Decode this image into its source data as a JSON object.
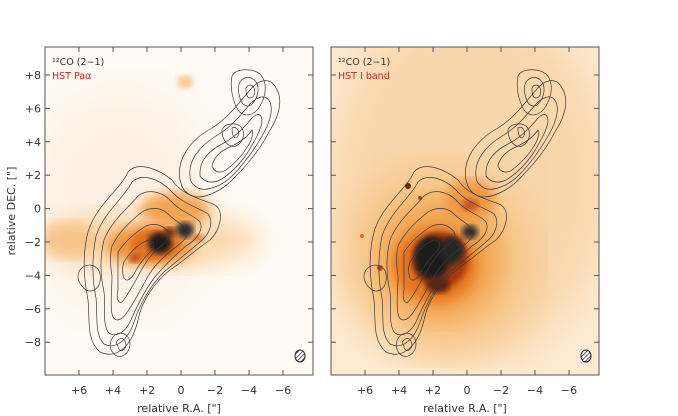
{
  "figure": {
    "ylabel": "relative DEC. [\"]",
    "xlabel": "relative R.A. [\"]",
    "y_ticks": [
      "+8",
      "+6",
      "+4",
      "+2",
      "0",
      "−2",
      "−4",
      "−6",
      "−8"
    ],
    "x_ticks": [
      "+6",
      "+4",
      "+2",
      "0",
      "−2",
      "−4",
      "−6"
    ],
    "panels": [
      {
        "id": "left",
        "line_label": "¹²CO (2−1)",
        "tracer_label": "HST Paα",
        "colormap": [
          "#ffffff",
          "#f6b36b",
          "#e5731e",
          "#a4390f",
          "#222222"
        ]
      },
      {
        "id": "right",
        "line_label": "¹²CO (2−1)",
        "tracer_label": "HST I band",
        "colormap": [
          "#ffffff",
          "#f6b36b",
          "#e5731e",
          "#a4390f",
          "#222222"
        ]
      }
    ]
  }
}
